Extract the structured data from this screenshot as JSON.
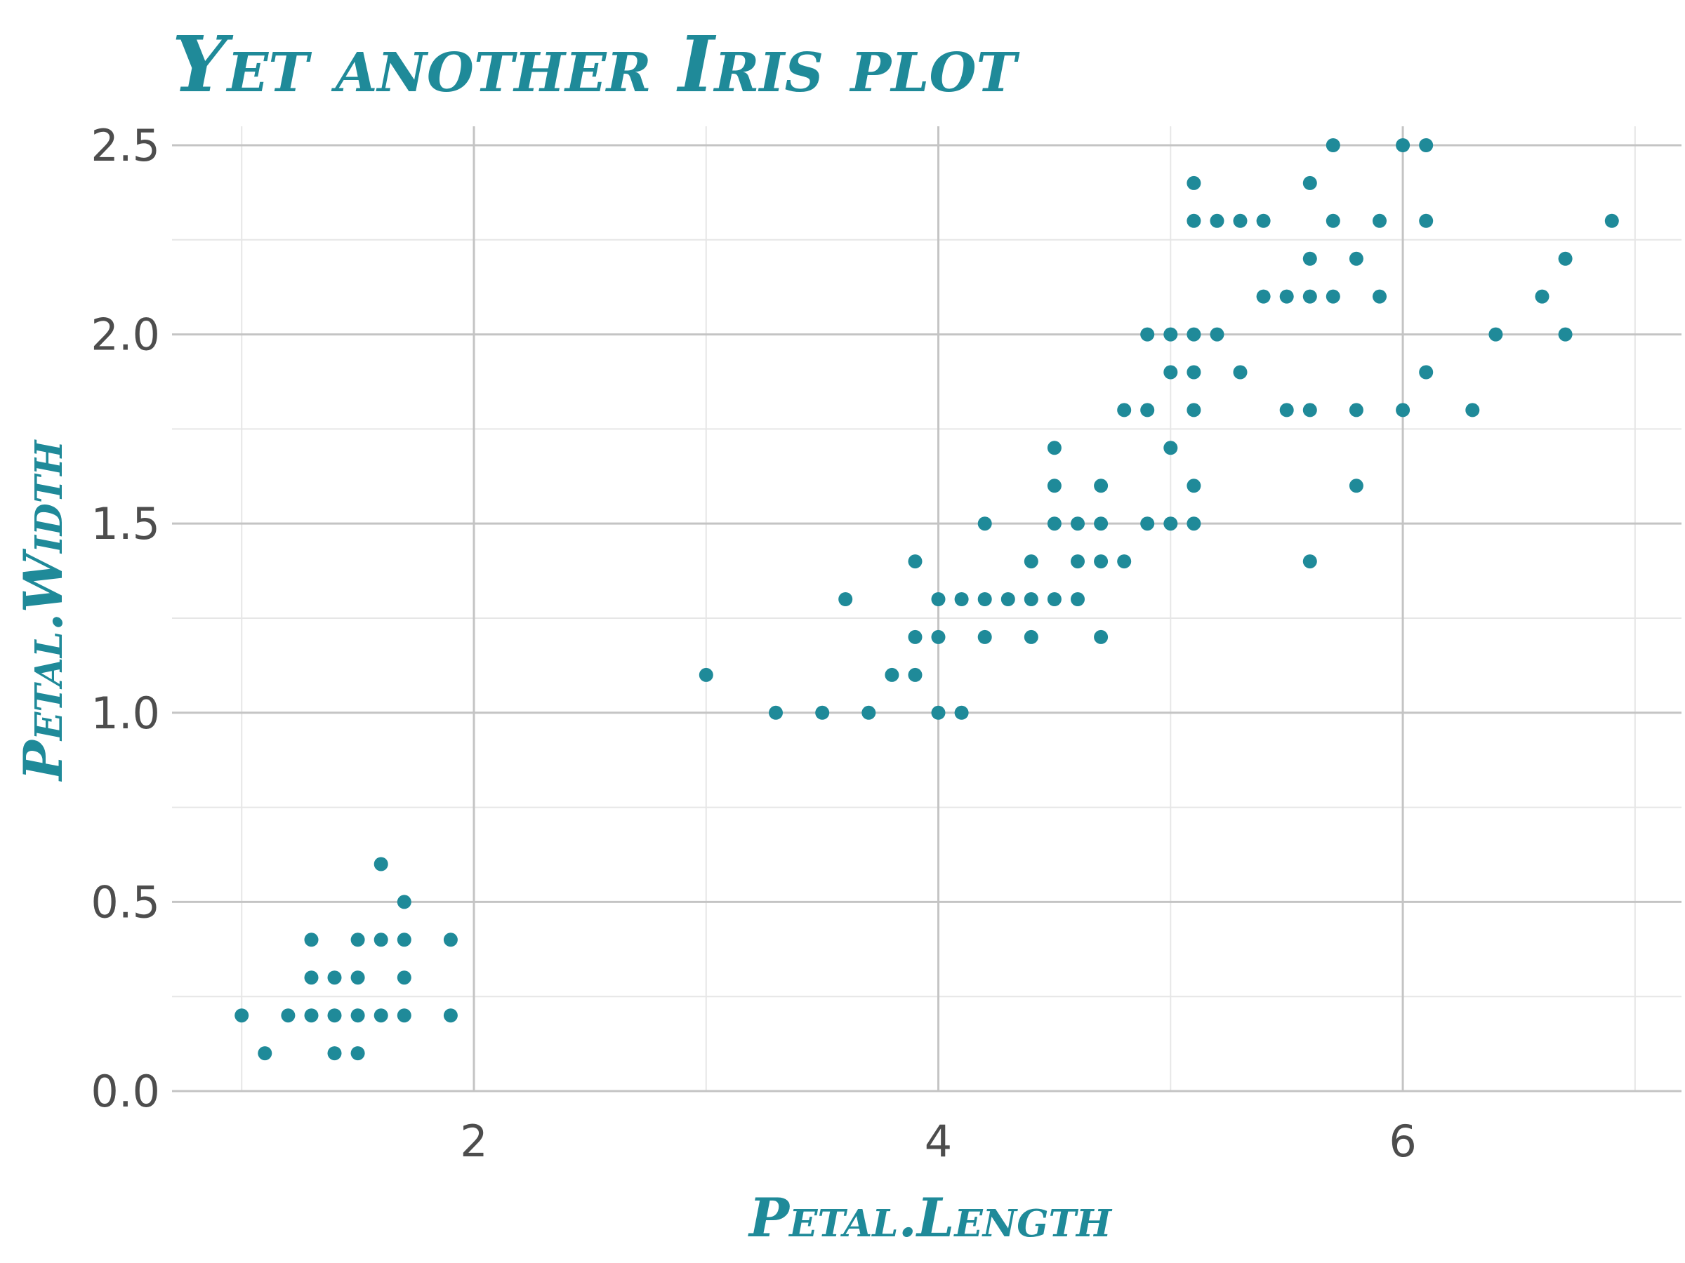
{
  "chart_data": {
    "type": "scatter",
    "title": "Yet another Iris plot",
    "xlabel": "Petal.Length",
    "ylabel": "Petal.Width",
    "xlim": [
      0.7,
      7.2
    ],
    "ylim": [
      0,
      2.55
    ],
    "x_ticks": [
      2,
      4,
      6
    ],
    "x_tick_labels": [
      "2",
      "4",
      "6"
    ],
    "y_ticks": [
      0,
      0.5,
      1,
      1.5,
      2,
      2.5
    ],
    "y_tick_labels": [
      "0.0",
      "0.5",
      "1.0",
      "1.5",
      "2.0",
      "2.5"
    ],
    "x_minor_ticks": [
      1,
      3,
      5,
      7
    ],
    "y_minor_ticks": [
      0.25,
      0.75,
      1.25,
      1.75,
      2.25
    ],
    "grid": true,
    "legend": "none",
    "colors": {
      "accent": "#1f8a99",
      "grid_major": "#c4c4c4",
      "grid_minor": "#e6e6e6",
      "tick_text": "#4d4d4d"
    },
    "points": [
      [
        1.0,
        0.2
      ],
      [
        1.1,
        0.1
      ],
      [
        1.2,
        0.2
      ],
      [
        1.3,
        0.2
      ],
      [
        1.3,
        0.3
      ],
      [
        1.3,
        0.4
      ],
      [
        1.4,
        0.1
      ],
      [
        1.4,
        0.2
      ],
      [
        1.4,
        0.3
      ],
      [
        1.5,
        0.1
      ],
      [
        1.5,
        0.2
      ],
      [
        1.5,
        0.3
      ],
      [
        1.5,
        0.4
      ],
      [
        1.6,
        0.2
      ],
      [
        1.6,
        0.4
      ],
      [
        1.6,
        0.6
      ],
      [
        1.7,
        0.2
      ],
      [
        1.7,
        0.3
      ],
      [
        1.7,
        0.4
      ],
      [
        1.7,
        0.5
      ],
      [
        1.9,
        0.2
      ],
      [
        1.9,
        0.4
      ],
      [
        3.0,
        1.1
      ],
      [
        3.3,
        1.0
      ],
      [
        3.5,
        1.0
      ],
      [
        3.6,
        1.3
      ],
      [
        3.7,
        1.0
      ],
      [
        3.8,
        1.1
      ],
      [
        3.9,
        1.1
      ],
      [
        3.9,
        1.2
      ],
      [
        3.9,
        1.4
      ],
      [
        4.0,
        1.0
      ],
      [
        4.0,
        1.2
      ],
      [
        4.0,
        1.3
      ],
      [
        4.1,
        1.0
      ],
      [
        4.1,
        1.3
      ],
      [
        4.2,
        1.2
      ],
      [
        4.2,
        1.3
      ],
      [
        4.2,
        1.5
      ],
      [
        4.3,
        1.3
      ],
      [
        4.4,
        1.2
      ],
      [
        4.4,
        1.3
      ],
      [
        4.4,
        1.4
      ],
      [
        4.5,
        1.3
      ],
      [
        4.5,
        1.5
      ],
      [
        4.5,
        1.6
      ],
      [
        4.5,
        1.7
      ],
      [
        4.6,
        1.3
      ],
      [
        4.6,
        1.4
      ],
      [
        4.6,
        1.5
      ],
      [
        4.7,
        1.2
      ],
      [
        4.7,
        1.4
      ],
      [
        4.7,
        1.5
      ],
      [
        4.7,
        1.6
      ],
      [
        4.8,
        1.4
      ],
      [
        4.8,
        1.8
      ],
      [
        4.9,
        1.5
      ],
      [
        4.9,
        1.8
      ],
      [
        4.9,
        2.0
      ],
      [
        5.0,
        1.5
      ],
      [
        5.0,
        1.7
      ],
      [
        5.0,
        1.9
      ],
      [
        5.0,
        2.0
      ],
      [
        5.1,
        1.5
      ],
      [
        5.1,
        1.6
      ],
      [
        5.1,
        1.8
      ],
      [
        5.1,
        1.9
      ],
      [
        5.1,
        2.0
      ],
      [
        5.1,
        2.3
      ],
      [
        5.1,
        2.4
      ],
      [
        5.2,
        2.0
      ],
      [
        5.2,
        2.3
      ],
      [
        5.3,
        1.9
      ],
      [
        5.3,
        2.3
      ],
      [
        5.4,
        2.1
      ],
      [
        5.4,
        2.3
      ],
      [
        5.5,
        1.8
      ],
      [
        5.5,
        2.1
      ],
      [
        5.6,
        1.4
      ],
      [
        5.6,
        1.8
      ],
      [
        5.6,
        2.1
      ],
      [
        5.6,
        2.2
      ],
      [
        5.6,
        2.4
      ],
      [
        5.7,
        2.1
      ],
      [
        5.7,
        2.3
      ],
      [
        5.7,
        2.5
      ],
      [
        5.8,
        1.6
      ],
      [
        5.8,
        1.8
      ],
      [
        5.8,
        2.2
      ],
      [
        5.9,
        2.1
      ],
      [
        5.9,
        2.3
      ],
      [
        6.0,
        1.8
      ],
      [
        6.0,
        2.5
      ],
      [
        6.1,
        1.9
      ],
      [
        6.1,
        2.3
      ],
      [
        6.1,
        2.5
      ],
      [
        6.3,
        1.8
      ],
      [
        6.4,
        2.0
      ],
      [
        6.6,
        2.1
      ],
      [
        6.7,
        2.0
      ],
      [
        6.7,
        2.2
      ],
      [
        6.9,
        2.3
      ]
    ]
  }
}
